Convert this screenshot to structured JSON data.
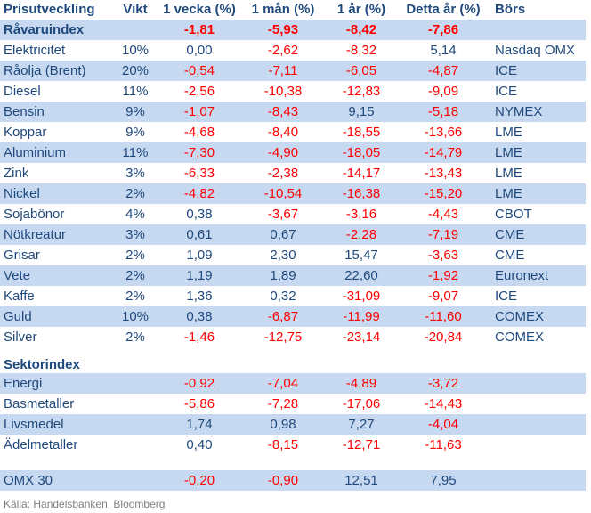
{
  "colors": {
    "text_blue": "#1F497D",
    "negative_red": "#FF0000",
    "band_blue": "#C6D9F1",
    "source_gray": "#7F7F7F"
  },
  "table": {
    "columns": [
      "Prisutveckling",
      "Vikt",
      "1 vecka (%)",
      "1 mån (%)",
      "1 år (%)",
      "Detta år (%)",
      "Börs"
    ],
    "rows": [
      {
        "name": "Råvaruindex",
        "weight": "",
        "values": [
          "-1,81",
          "-5,93",
          "-8,42",
          "-7,86"
        ],
        "exchange": "",
        "bold": true
      },
      {
        "name": "Elektricitet",
        "weight": "10%",
        "values": [
          "0,00",
          "-2,62",
          "-8,32",
          "5,14"
        ],
        "exchange": "Nasdaq OMX"
      },
      {
        "name": "Råolja (Brent)",
        "weight": "20%",
        "values": [
          "-0,54",
          "-7,11",
          "-6,05",
          "-4,87"
        ],
        "exchange": "ICE"
      },
      {
        "name": "Diesel",
        "weight": "11%",
        "values": [
          "-2,56",
          "-10,38",
          "-12,83",
          "-9,09"
        ],
        "exchange": "ICE"
      },
      {
        "name": "Bensin",
        "weight": "9%",
        "values": [
          "-1,07",
          "-8,43",
          "9,15",
          "-5,18"
        ],
        "exchange": "NYMEX"
      },
      {
        "name": "Koppar",
        "weight": "9%",
        "values": [
          "-4,68",
          "-8,40",
          "-18,55",
          "-13,66"
        ],
        "exchange": "LME"
      },
      {
        "name": "Aluminium",
        "weight": "11%",
        "values": [
          "-7,30",
          "-4,90",
          "-18,05",
          "-14,79"
        ],
        "exchange": "LME"
      },
      {
        "name": "Zink",
        "weight": "3%",
        "values": [
          "-6,33",
          "-2,38",
          "-14,17",
          "-13,43"
        ],
        "exchange": "LME"
      },
      {
        "name": "Nickel",
        "weight": "2%",
        "values": [
          "-4,82",
          "-10,54",
          "-16,38",
          "-15,20"
        ],
        "exchange": "LME"
      },
      {
        "name": "Sojabönor",
        "weight": "4%",
        "values": [
          "0,38",
          "-3,67",
          "-3,16",
          "-4,43"
        ],
        "exchange": "CBOT"
      },
      {
        "name": "Nötkreatur",
        "weight": "3%",
        "values": [
          "0,61",
          "0,67",
          "-2,28",
          "-7,19"
        ],
        "exchange": "CME"
      },
      {
        "name": "Grisar",
        "weight": "2%",
        "values": [
          "1,09",
          "2,30",
          "15,47",
          "-3,63"
        ],
        "exchange": "CME"
      },
      {
        "name": "Vete",
        "weight": "2%",
        "values": [
          "1,19",
          "1,89",
          "22,60",
          "-1,92"
        ],
        "exchange": "Euronext"
      },
      {
        "name": "Kaffe",
        "weight": "2%",
        "values": [
          "1,36",
          "0,32",
          "-31,09",
          "-9,07"
        ],
        "exchange": "ICE"
      },
      {
        "name": "Guld",
        "weight": "10%",
        "values": [
          "0,38",
          "-6,87",
          "-11,99",
          "-11,60"
        ],
        "exchange": "COMEX"
      },
      {
        "name": "Silver",
        "weight": "2%",
        "values": [
          "-1,46",
          "-12,75",
          "-23,14",
          "-20,84"
        ],
        "exchange": "COMEX"
      }
    ],
    "sector_section": {
      "title": "Sektorindex",
      "rows": [
        {
          "name": "Energi",
          "weight": "",
          "values": [
            "-0,92",
            "-7,04",
            "-4,89",
            "-3,72"
          ],
          "exchange": ""
        },
        {
          "name": "Basmetaller",
          "weight": "",
          "values": [
            "-5,86",
            "-7,28",
            "-17,06",
            "-14,43"
          ],
          "exchange": ""
        },
        {
          "name": "Livsmedel",
          "weight": "",
          "values": [
            "1,74",
            "0,98",
            "7,27",
            "-4,04"
          ],
          "exchange": ""
        },
        {
          "name": "Ädelmetaller",
          "weight": "",
          "values": [
            "0,40",
            "-8,15",
            "-12,71",
            "-11,63"
          ],
          "exchange": ""
        }
      ]
    },
    "omx_section": {
      "rows": [
        {
          "name": "OMX 30",
          "weight": "",
          "values": [
            "-0,20",
            "-0,90",
            "12,51",
            "7,95"
          ],
          "exchange": ""
        }
      ]
    },
    "source": "Källa: Handelsbanken, Bloomberg"
  }
}
